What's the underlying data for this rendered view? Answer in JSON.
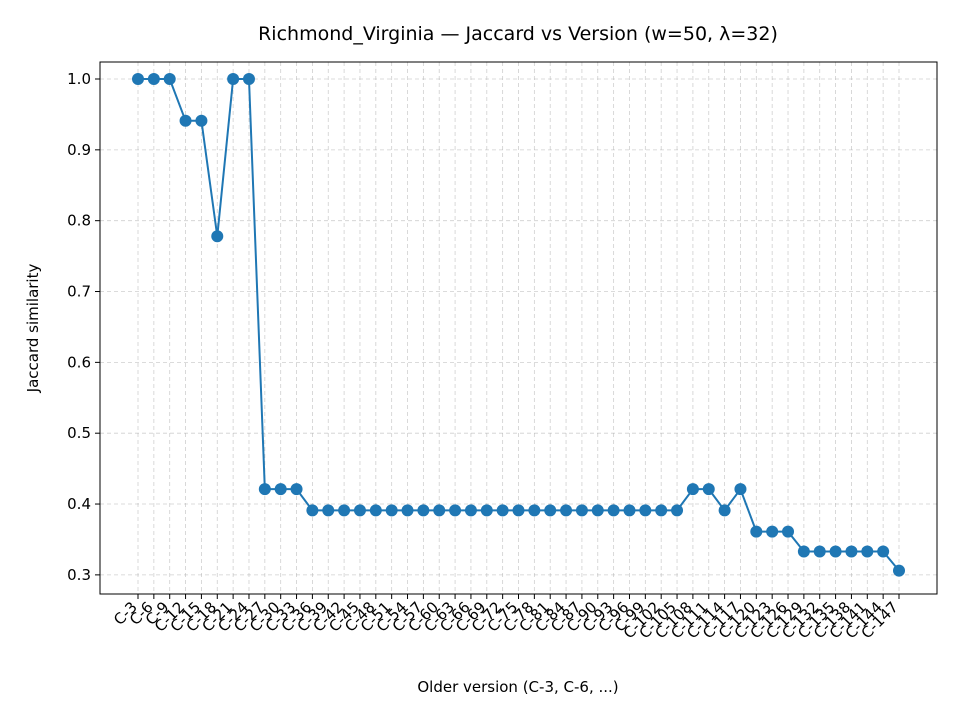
{
  "chart_data": {
    "type": "line",
    "title": "Richmond_Virginia — Jaccard vs Version (w=50, λ=32)",
    "x_label": "Older version (C-3, C-6, ...)",
    "y_label": "Jaccard similarity",
    "categories": [
      "C-3",
      "C-6",
      "C-9",
      "C-12",
      "C-15",
      "C-18",
      "C-21",
      "C-24",
      "C-27",
      "C-30",
      "C-33",
      "C-36",
      "C-39",
      "C-42",
      "C-45",
      "C-48",
      "C-51",
      "C-54",
      "C-57",
      "C-60",
      "C-63",
      "C-66",
      "C-69",
      "C-72",
      "C-75",
      "C-78",
      "C-81",
      "C-84",
      "C-87",
      "C-90",
      "C-93",
      "C-96",
      "C-99",
      "C-102",
      "C-105",
      "C-108",
      "C-111",
      "C-114",
      "C-117",
      "C-120",
      "C-123",
      "C-126",
      "C-129",
      "C-132",
      "C-135",
      "C-138",
      "C-141",
      "C-144",
      "C-147"
    ],
    "series": [
      {
        "name": "Jaccard",
        "color": "#1f77b4",
        "values": [
          1.0,
          1.0,
          1.0,
          0.941,
          0.941,
          0.778,
          1.0,
          1.0,
          0.421,
          0.421,
          0.421,
          0.391,
          0.391,
          0.391,
          0.391,
          0.391,
          0.391,
          0.391,
          0.391,
          0.391,
          0.391,
          0.391,
          0.391,
          0.391,
          0.391,
          0.391,
          0.391,
          0.391,
          0.391,
          0.391,
          0.391,
          0.391,
          0.391,
          0.391,
          0.391,
          0.421,
          0.421,
          0.391,
          0.421,
          0.361,
          0.361,
          0.361,
          0.333,
          0.333,
          0.333,
          0.333,
          0.333,
          0.333,
          0.306
        ]
      }
    ],
    "ylim": [
      0.273,
      1.024
    ],
    "yticks": [
      0.3,
      0.4,
      0.5,
      0.6,
      0.7,
      0.8,
      0.9,
      {
        "value": 1,
        "label": "1.0"
      }
    ],
    "grid": true
  }
}
